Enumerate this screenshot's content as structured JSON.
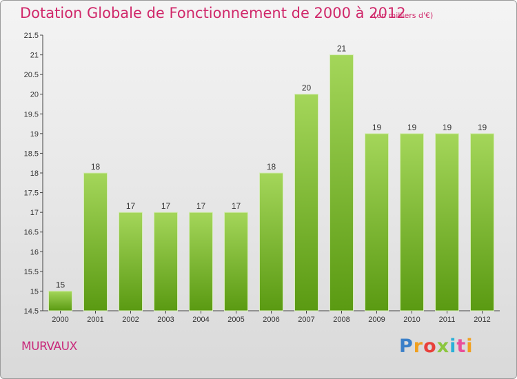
{
  "title": "Dotation Globale de Fonctionnement de 2000 à 2012",
  "subtitle": "(en milliers d'€)",
  "city": "MURVAUX",
  "logo": {
    "text": "Proxiti",
    "colors": [
      "#3a7fc8",
      "#f0a020",
      "#e8403a",
      "#8cc63f",
      "#2ab0d8",
      "#e94e9a",
      "#f0a020"
    ]
  },
  "colors": {
    "bar_top": "#a4d65a",
    "bar_bottom": "#5a9a12",
    "title": "#d0286a",
    "city": "#c8287a"
  },
  "chart_data": {
    "type": "bar",
    "categories": [
      "2000",
      "2001",
      "2002",
      "2003",
      "2004",
      "2005",
      "2006",
      "2007",
      "2008",
      "2009",
      "2010",
      "2011",
      "2012"
    ],
    "values": [
      15,
      18,
      17,
      17,
      17,
      17,
      18,
      20,
      21,
      19,
      19,
      19,
      19
    ],
    "value_labels": [
      "15",
      "18",
      "17",
      "17",
      "17",
      "17",
      "18",
      "20",
      "21",
      "19",
      "19",
      "19",
      "19"
    ],
    "yticks": [
      "14.5",
      "15",
      "15.5",
      "16",
      "16.5",
      "17",
      "17.5",
      "18",
      "18.5",
      "19",
      "19.5",
      "20",
      "20.5",
      "21",
      "21.5"
    ],
    "ylim": [
      14.5,
      21.5
    ],
    "grid": false,
    "xlabel": "",
    "ylabel": ""
  }
}
